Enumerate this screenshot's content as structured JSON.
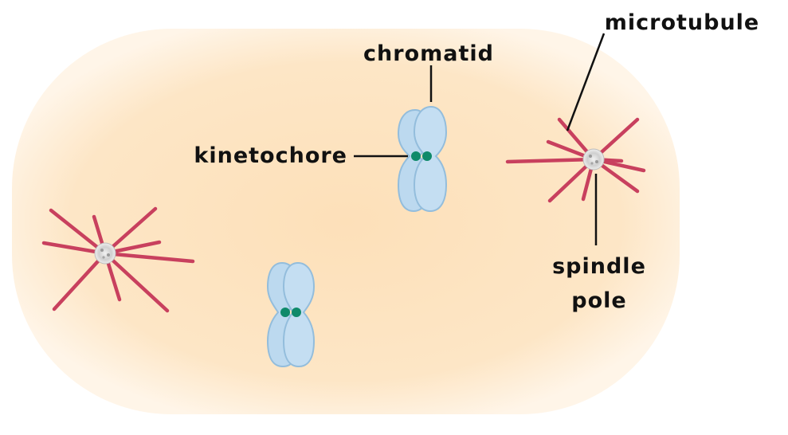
{
  "labels": {
    "chromatid": "chromatid",
    "microtubule": "microtubule",
    "kinetochore": "kinetochore",
    "spindle_line1": "spindle",
    "spindle_line2": "pole"
  },
  "colors": {
    "cell_fill": "#fde6c6",
    "cell_edge": "#fff4e6",
    "chromatid_fill": "#bcd9ef",
    "chromatid_stroke": "#93bddc",
    "kinetochore": "#0f8a6a",
    "microtubule": "#c8405e",
    "pole": "#b9b9b9",
    "leader_line": "#111111"
  }
}
